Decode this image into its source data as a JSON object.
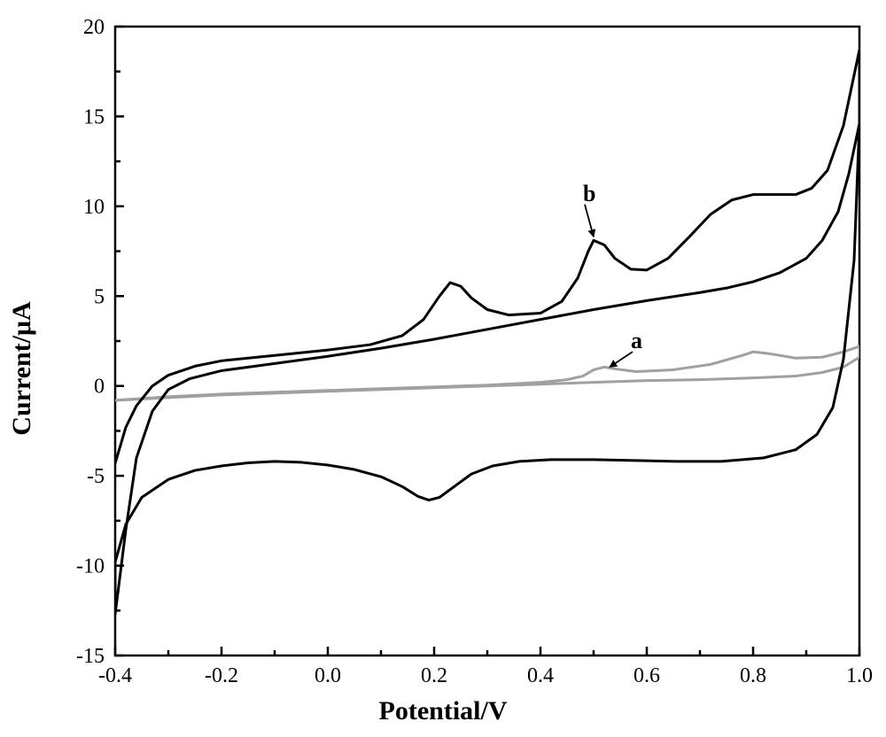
{
  "chart": {
    "type": "line",
    "background_color": "#ffffff",
    "plot_border_color": "#000000",
    "plot_border_width": 2.5,
    "tick_length_major": 10,
    "tick_width": 2.5,
    "xlim": [
      -0.4,
      1.0
    ],
    "ylim": [
      -15,
      20
    ],
    "xticks": [
      -0.4,
      -0.2,
      0.0,
      0.2,
      0.4,
      0.6,
      0.8,
      1.0
    ],
    "yticks": [
      -15,
      -10,
      -5,
      0,
      5,
      10,
      15,
      20
    ],
    "xlabel": "Potential/V",
    "ylabel": "Current/μA",
    "tick_fontsize": 24,
    "label_fontsize": 30,
    "series_a": {
      "color": "#a0a0a0",
      "line_width": 3.0,
      "label": "a",
      "label_xy": [
        0.57,
        2.1
      ],
      "arrow_to": [
        0.53,
        1.05
      ],
      "points": [
        [
          -0.4,
          -0.8
        ],
        [
          -0.3,
          -0.6
        ],
        [
          -0.2,
          -0.45
        ],
        [
          -0.1,
          -0.35
        ],
        [
          0.0,
          -0.25
        ],
        [
          0.1,
          -0.15
        ],
        [
          0.2,
          -0.05
        ],
        [
          0.3,
          0.05
        ],
        [
          0.4,
          0.2
        ],
        [
          0.45,
          0.35
        ],
        [
          0.48,
          0.55
        ],
        [
          0.5,
          0.9
        ],
        [
          0.52,
          1.05
        ],
        [
          0.54,
          0.95
        ],
        [
          0.58,
          0.8
        ],
        [
          0.65,
          0.9
        ],
        [
          0.72,
          1.2
        ],
        [
          0.78,
          1.7
        ],
        [
          0.8,
          1.9
        ],
        [
          0.83,
          1.8
        ],
        [
          0.88,
          1.55
        ],
        [
          0.93,
          1.6
        ],
        [
          0.97,
          1.9
        ],
        [
          1.0,
          2.2
        ],
        [
          1.0,
          1.6
        ],
        [
          0.97,
          1.05
        ],
        [
          0.93,
          0.75
        ],
        [
          0.88,
          0.55
        ],
        [
          0.8,
          0.45
        ],
        [
          0.7,
          0.35
        ],
        [
          0.6,
          0.3
        ],
        [
          0.5,
          0.2
        ],
        [
          0.4,
          0.1
        ],
        [
          0.3,
          0.0
        ],
        [
          0.2,
          -0.1
        ],
        [
          0.1,
          -0.2
        ],
        [
          0.0,
          -0.3
        ],
        [
          -0.1,
          -0.4
        ],
        [
          -0.2,
          -0.5
        ],
        [
          -0.3,
          -0.65
        ],
        [
          -0.4,
          -0.8
        ]
      ]
    },
    "series_b": {
      "color": "#000000",
      "line_width": 3.0,
      "label": "b",
      "label_xy": [
        0.48,
        10.3
      ],
      "arrow_to": [
        0.5,
        8.3
      ],
      "points": [
        [
          -0.4,
          -4.3
        ],
        [
          -0.38,
          -2.3
        ],
        [
          -0.36,
          -1.1
        ],
        [
          -0.33,
          0.0
        ],
        [
          -0.3,
          0.6
        ],
        [
          -0.25,
          1.1
        ],
        [
          -0.2,
          1.4
        ],
        [
          -0.1,
          1.7
        ],
        [
          0.0,
          2.0
        ],
        [
          0.08,
          2.3
        ],
        [
          0.14,
          2.8
        ],
        [
          0.18,
          3.7
        ],
        [
          0.21,
          5.0
        ],
        [
          0.23,
          5.75
        ],
        [
          0.25,
          5.55
        ],
        [
          0.27,
          4.9
        ],
        [
          0.3,
          4.25
        ],
        [
          0.34,
          3.95
        ],
        [
          0.4,
          4.05
        ],
        [
          0.44,
          4.7
        ],
        [
          0.47,
          6.0
        ],
        [
          0.49,
          7.5
        ],
        [
          0.5,
          8.1
        ],
        [
          0.52,
          7.85
        ],
        [
          0.54,
          7.1
        ],
        [
          0.57,
          6.5
        ],
        [
          0.6,
          6.45
        ],
        [
          0.64,
          7.1
        ],
        [
          0.68,
          8.3
        ],
        [
          0.72,
          9.55
        ],
        [
          0.76,
          10.35
        ],
        [
          0.8,
          10.65
        ],
        [
          0.84,
          10.65
        ],
        [
          0.88,
          10.65
        ],
        [
          0.91,
          11.0
        ],
        [
          0.94,
          12.0
        ],
        [
          0.97,
          14.5
        ],
        [
          1.0,
          18.7
        ],
        [
          1.0,
          14.6
        ],
        [
          0.98,
          11.8
        ],
        [
          0.96,
          9.7
        ],
        [
          0.93,
          8.1
        ],
        [
          0.9,
          7.1
        ],
        [
          0.85,
          6.3
        ],
        [
          0.8,
          5.8
        ],
        [
          0.75,
          5.45
        ],
        [
          0.7,
          5.2
        ],
        [
          0.6,
          4.75
        ],
        [
          0.5,
          4.25
        ],
        [
          0.4,
          3.7
        ],
        [
          0.3,
          3.15
        ],
        [
          0.2,
          2.6
        ],
        [
          0.1,
          2.1
        ],
        [
          0.0,
          1.65
        ],
        [
          -0.1,
          1.25
        ],
        [
          -0.2,
          0.85
        ],
        [
          -0.26,
          0.4
        ],
        [
          -0.3,
          -0.2
        ],
        [
          -0.33,
          -1.4
        ],
        [
          -0.36,
          -4.0
        ],
        [
          -0.38,
          -8.0
        ],
        [
          -0.4,
          -12.7
        ],
        [
          -0.4,
          -9.8
        ],
        [
          -0.38,
          -7.7
        ],
        [
          -0.35,
          -6.2
        ],
        [
          -0.3,
          -5.2
        ],
        [
          -0.25,
          -4.7
        ],
        [
          -0.2,
          -4.45
        ],
        [
          -0.15,
          -4.28
        ],
        [
          -0.1,
          -4.2
        ],
        [
          -0.05,
          -4.25
        ],
        [
          0.0,
          -4.4
        ],
        [
          0.05,
          -4.65
        ],
        [
          0.1,
          -5.05
        ],
        [
          0.14,
          -5.6
        ],
        [
          0.17,
          -6.15
        ],
        [
          0.19,
          -6.35
        ],
        [
          0.21,
          -6.2
        ],
        [
          0.24,
          -5.55
        ],
        [
          0.27,
          -4.9
        ],
        [
          0.31,
          -4.45
        ],
        [
          0.36,
          -4.2
        ],
        [
          0.42,
          -4.1
        ],
        [
          0.5,
          -4.1
        ],
        [
          0.58,
          -4.15
        ],
        [
          0.66,
          -4.2
        ],
        [
          0.74,
          -4.2
        ],
        [
          0.82,
          -4.0
        ],
        [
          0.88,
          -3.55
        ],
        [
          0.92,
          -2.7
        ],
        [
          0.95,
          -1.2
        ],
        [
          0.97,
          1.5
        ],
        [
          0.99,
          7.0
        ],
        [
          1.0,
          14.6
        ]
      ]
    }
  }
}
